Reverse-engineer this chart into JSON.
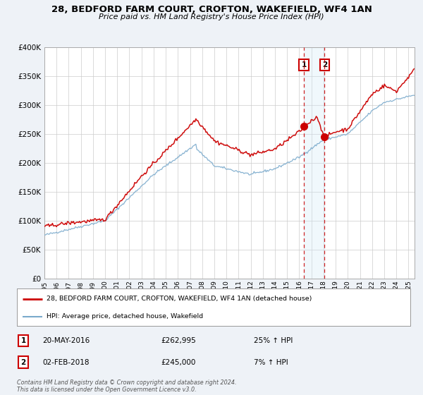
{
  "title": "28, BEDFORD FARM COURT, CROFTON, WAKEFIELD, WF4 1AN",
  "subtitle": "Price paid vs. HM Land Registry's House Price Index (HPI)",
  "legend_line1": "28, BEDFORD FARM COURT, CROFTON, WAKEFIELD, WF4 1AN (detached house)",
  "legend_line2": "HPI: Average price, detached house, Wakefield",
  "annotation1_label": "1",
  "annotation1_date": "20-MAY-2016",
  "annotation1_price": "£262,995",
  "annotation1_hpi": "25% ↑ HPI",
  "annotation1_year": 2016.38,
  "annotation1_value": 262995,
  "annotation2_label": "2",
  "annotation2_date": "02-FEB-2018",
  "annotation2_price": "£245,000",
  "annotation2_hpi": "7% ↑ HPI",
  "annotation2_year": 2018.09,
  "annotation2_value": 245000,
  "footer1": "Contains HM Land Registry data © Crown copyright and database right 2024.",
  "footer2": "This data is licensed under the Open Government Licence v3.0.",
  "ylim": [
    0,
    400000
  ],
  "yticks": [
    0,
    50000,
    100000,
    150000,
    200000,
    250000,
    300000,
    350000,
    400000
  ],
  "xlim_start": 1995.0,
  "xlim_end": 2025.5,
  "red_color": "#cc0000",
  "blue_color": "#7aaacc",
  "bg_color": "#eef2f7",
  "plot_bg": "#ffffff",
  "grid_color": "#cccccc",
  "shade_color": "#d0e8f8"
}
